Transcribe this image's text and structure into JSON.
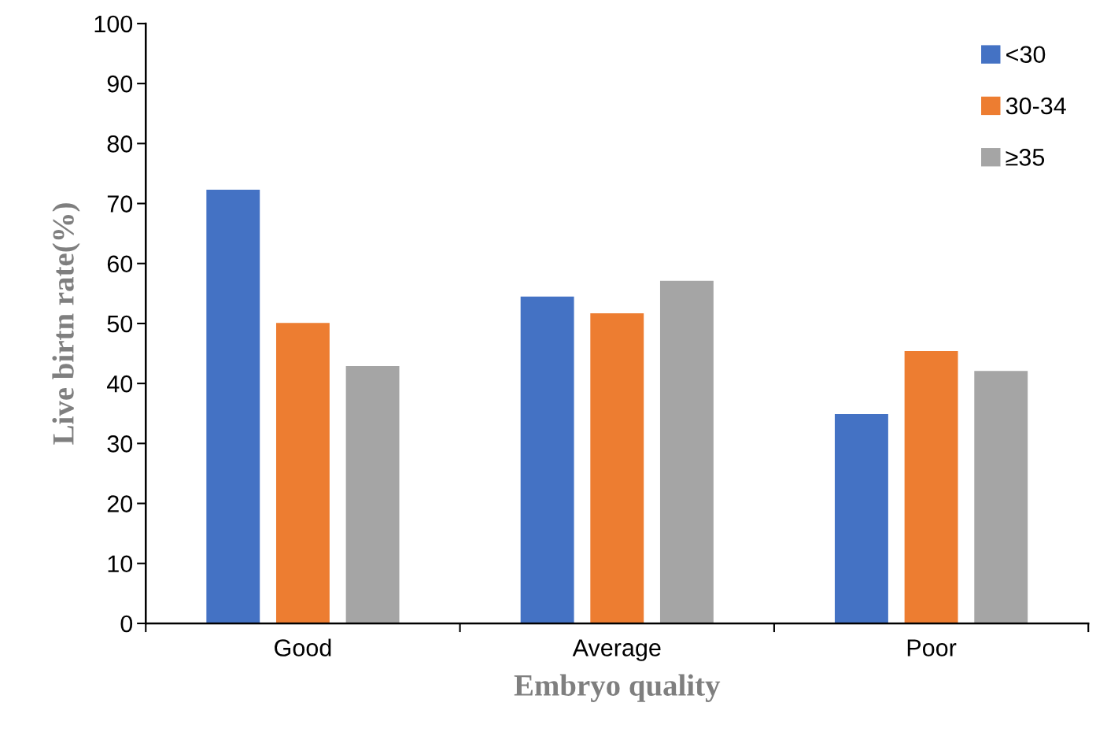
{
  "chart_data": {
    "type": "bar",
    "xlabel": "Embryo quality",
    "ylabel": "Live birtn rate(%)",
    "categories": [
      "Good",
      "Average",
      "Poor"
    ],
    "series": [
      {
        "name": "<30",
        "color": "#4472c4",
        "values": [
          72.3,
          54.5,
          34.9
        ]
      },
      {
        "name": "30-34",
        "color": "#ed7d31",
        "values": [
          50.1,
          51.7,
          45.4
        ]
      },
      {
        "name": "≥35",
        "color": "#a5a5a5",
        "values": [
          42.9,
          57.1,
          42.1
        ]
      }
    ],
    "ylim": [
      0,
      100
    ],
    "yticks": [
      0,
      10,
      20,
      30,
      40,
      50,
      60,
      70,
      80,
      90,
      100
    ],
    "grid": false,
    "legend": "top right"
  }
}
